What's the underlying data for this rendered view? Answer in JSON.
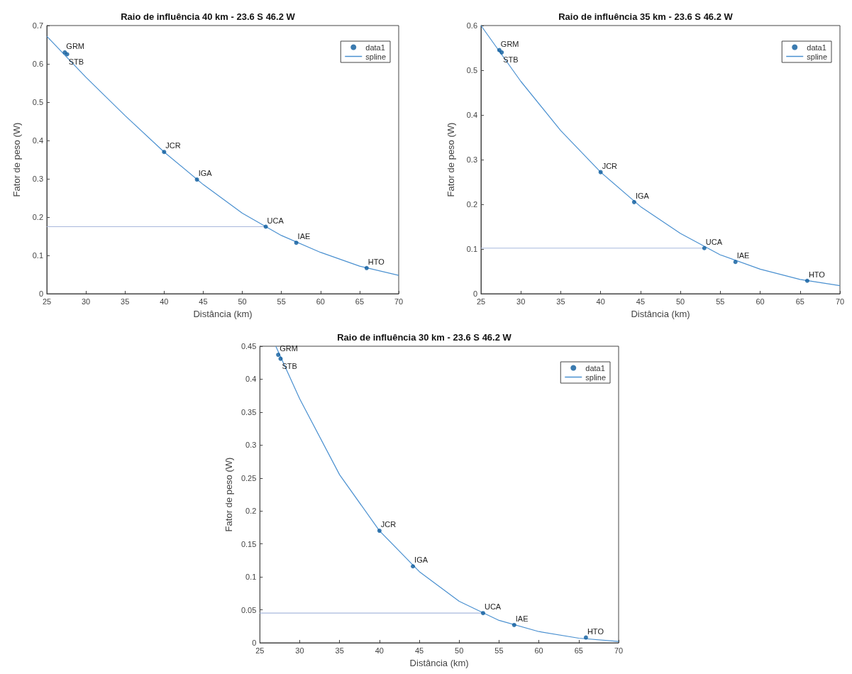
{
  "chart_data": [
    {
      "type": "scatter",
      "title": "Raio de influência 40 km - 23.6 S 46.2 W",
      "xlabel": "Distância (km)",
      "ylabel": "Fator de peso (W)",
      "xlim": [
        25,
        70
      ],
      "xticks": [
        25,
        30,
        35,
        40,
        45,
        50,
        55,
        60,
        65,
        70
      ],
      "ylim": [
        0,
        0.7
      ],
      "yticks": [
        0,
        0.1,
        0.2,
        0.3,
        0.4,
        0.5,
        0.6,
        0.7
      ],
      "grid": false,
      "legend": "top right",
      "series": [
        {
          "name": "data1",
          "marker": "circle",
          "color": "#0a5a9c",
          "x": [
            27.3,
            27.6,
            40,
            44.2,
            53,
            56.9,
            65.9
          ],
          "values": [
            0.63,
            0.625,
            0.37,
            0.298,
            0.175,
            0.133,
            0.067
          ]
        },
        {
          "name": "spline",
          "type": "line",
          "marker": "none",
          "color": "#4a90d0",
          "x": [
            25,
            30,
            35,
            40,
            45,
            50,
            55,
            60,
            65,
            70
          ],
          "values": [
            0.672,
            0.565,
            0.465,
            0.37,
            0.285,
            0.21,
            0.152,
            0.108,
            0.072,
            0.048
          ]
        },
        {
          "type": "line",
          "marker": "none",
          "color": "#a8b8dc",
          "x": [
            25,
            53
          ],
          "values": [
            0.175,
            0.175
          ]
        }
      ],
      "annotations": [
        {
          "text": "GRM",
          "x": 27.3,
          "y": 0.63
        },
        {
          "text": "STB",
          "x": 27.6,
          "y": 0.625
        },
        {
          "text": "JCR",
          "x": 40,
          "y": 0.37
        },
        {
          "text": "IGA",
          "x": 44.2,
          "y": 0.298
        },
        {
          "text": "UCA",
          "x": 53,
          "y": 0.175
        },
        {
          "text": "IAE",
          "x": 56.9,
          "y": 0.133
        },
        {
          "text": "HTO",
          "x": 65.9,
          "y": 0.067
        }
      ]
    },
    {
      "type": "scatter",
      "title": "Raio de influência 35 km - 23.6 S 46.2 W",
      "xlabel": "Distância (km)",
      "ylabel": "Fator de peso (W)",
      "xlim": [
        25,
        70
      ],
      "xticks": [
        25,
        30,
        35,
        40,
        45,
        50,
        55,
        60,
        65,
        70
      ],
      "ylim": [
        0,
        0.6
      ],
      "yticks": [
        0,
        0.1,
        0.2,
        0.3,
        0.4,
        0.5,
        0.6
      ],
      "grid": false,
      "legend": "top right",
      "series": [
        {
          "name": "data1",
          "marker": "circle",
          "color": "#0a5a9c",
          "x": [
            27.3,
            27.6,
            40,
            44.2,
            53,
            56.9,
            65.9
          ],
          "values": [
            0.545,
            0.54,
            0.272,
            0.205,
            0.102,
            0.071,
            0.029
          ]
        },
        {
          "name": "spline",
          "type": "line",
          "marker": "none",
          "color": "#4a90d0",
          "x": [
            25,
            30,
            35,
            40,
            45,
            50,
            55,
            60,
            65,
            70
          ],
          "values": [
            0.6,
            0.475,
            0.365,
            0.272,
            0.195,
            0.135,
            0.087,
            0.055,
            0.032,
            0.018
          ]
        },
        {
          "type": "line",
          "marker": "none",
          "color": "#a8b8dc",
          "x": [
            25,
            53
          ],
          "values": [
            0.102,
            0.102
          ]
        }
      ],
      "annotations": [
        {
          "text": "GRM",
          "x": 27.3,
          "y": 0.545
        },
        {
          "text": "STB",
          "x": 27.6,
          "y": 0.54
        },
        {
          "text": "JCR",
          "x": 40,
          "y": 0.272
        },
        {
          "text": "IGA",
          "x": 44.2,
          "y": 0.205
        },
        {
          "text": "UCA",
          "x": 53,
          "y": 0.102
        },
        {
          "text": "IAE",
          "x": 56.9,
          "y": 0.071
        },
        {
          "text": "HTO",
          "x": 65.9,
          "y": 0.029
        }
      ]
    },
    {
      "type": "scatter",
      "title": "Raio de influência 30 km - 23.6 S 46.2 W",
      "xlabel": "Distância (km)",
      "ylabel": "Fator de peso (W)",
      "xlim": [
        25,
        70
      ],
      "xticks": [
        25,
        30,
        35,
        40,
        45,
        50,
        55,
        60,
        65,
        70
      ],
      "ylim": [
        0,
        0.45
      ],
      "yticks": [
        0,
        0.05,
        0.1,
        0.15,
        0.2,
        0.25,
        0.3,
        0.35,
        0.4,
        0.45
      ],
      "grid": false,
      "legend": "top right",
      "series": [
        {
          "name": "data1",
          "marker": "circle",
          "color": "#0a5a9c",
          "x": [
            27.3,
            27.6,
            40,
            44.2,
            53,
            56.9,
            65.9
          ],
          "values": [
            0.437,
            0.431,
            0.17,
            0.116,
            0.045,
            0.027,
            0.008
          ]
        },
        {
          "name": "spline",
          "type": "line",
          "marker": "none",
          "color": "#4a90d0",
          "x": [
            27,
            30,
            35,
            40,
            45,
            50,
            55,
            60,
            65,
            70
          ],
          "values": [
            0.45,
            0.37,
            0.255,
            0.17,
            0.108,
            0.063,
            0.034,
            0.017,
            0.007,
            0.002
          ]
        },
        {
          "type": "line",
          "marker": "none",
          "color": "#a8b8dc",
          "x": [
            25,
            53
          ],
          "values": [
            0.045,
            0.045
          ]
        }
      ],
      "annotations": [
        {
          "text": "GRM",
          "x": 27.3,
          "y": 0.437
        },
        {
          "text": "STB",
          "x": 27.6,
          "y": 0.431
        },
        {
          "text": "JCR",
          "x": 40,
          "y": 0.17
        },
        {
          "text": "IGA",
          "x": 44.2,
          "y": 0.116
        },
        {
          "text": "UCA",
          "x": 53,
          "y": 0.045
        },
        {
          "text": "IAE",
          "x": 56.9,
          "y": 0.027
        },
        {
          "text": "HTO",
          "x": 65.9,
          "y": 0.008
        }
      ]
    }
  ]
}
